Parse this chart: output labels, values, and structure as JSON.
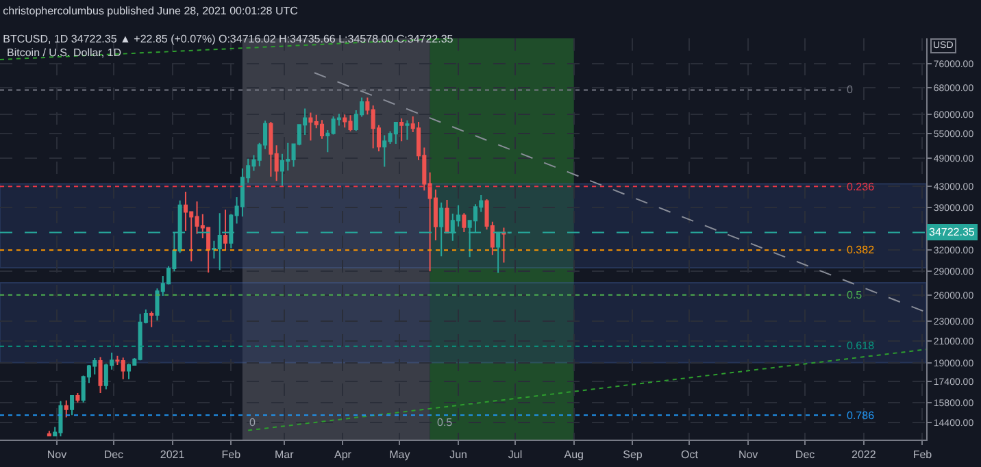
{
  "chart_data": {
    "type": "candlestick",
    "title": "christophercolumbus published June 28, 2021 00:01:28 UTC",
    "subtitle": "BTCUSD, 1D 34722.35 ▲ +22.85 (+0.07%) O:34716.02 H:34735.66 L:34578.00 C:34722.35",
    "ylabel": "USD",
    "annotations": [
      "Bitcoin / U.S. Dollar, 1D"
    ],
    "colors": [
      "#ef5350",
      "#26a69a",
      "#26a69a",
      "#ef5350",
      "#26a69a",
      "#ef5350",
      "#26a69a",
      "#26a69a",
      "#26a69a",
      "#ef5350",
      "#26a69a",
      "#26a69a",
      "#ef5350",
      "#ef5350",
      "#26a69a",
      "#26a69a",
      "#26a69a",
      "#26a69a",
      "#ef5350",
      "#26a69a",
      "#26a69a",
      "#26a69a",
      "#26a69a",
      "#26a69a",
      "#ef5350",
      "#ef5350",
      "#ef5350",
      "#ef5350",
      "#ef5350",
      "#26a69a",
      "#26a69a",
      "#ef5350",
      "#26a69a",
      "#26a69a",
      "#26a69a",
      "#26a69a",
      "#26a69a",
      "#26a69a",
      "#26a69a",
      "#ef5350",
      "#ef5350",
      "#26a69a",
      "#26a69a",
      "#26a69a",
      "#26a69a",
      "#26a69a",
      "#ef5350",
      "#ef5350",
      "#ef5350",
      "#26a69a",
      "#26a69a",
      "#26a69a",
      "#ef5350",
      "#ef5350",
      "#26a69a",
      "#26a69a",
      "#ef5350",
      "#ef5350",
      "#ef5350",
      "#26a69a",
      "#26a69a",
      "#26a69a",
      "#ef5350",
      "#26a69a",
      "#ef5350",
      "#ef5350",
      "#ef5350",
      "#ef5350",
      "#ef5350",
      "#26a69a",
      "#ef5350",
      "#26a69a",
      "#26a69a",
      "#ef5350",
      "#26a69a",
      "#26a69a",
      "#26a69a",
      "#ef5350",
      "#ef5350",
      "#26a69a",
      "#ef5350",
      "#26a69a"
    ],
    "x": [
      "2020-10-28",
      "2020-10-31",
      "2020-11-03",
      "2020-11-06",
      "2020-11-09",
      "2020-11-12",
      "2020-11-15",
      "2020-11-18",
      "2020-11-21",
      "2020-11-24",
      "2020-11-27",
      "2020-11-30",
      "2020-12-03",
      "2020-12-06",
      "2020-12-09",
      "2020-12-12",
      "2020-12-15",
      "2020-12-18",
      "2020-12-21",
      "2020-12-24",
      "2020-12-27",
      "2020-12-30",
      "2021-01-02",
      "2021-01-05",
      "2021-01-08",
      "2021-01-11",
      "2021-01-14",
      "2021-01-17",
      "2021-01-20",
      "2021-01-23",
      "2021-01-26",
      "2021-01-29",
      "2021-02-01",
      "2021-02-04",
      "2021-02-07",
      "2021-02-10",
      "2021-02-13",
      "2021-02-16",
      "2021-02-19",
      "2021-02-22",
      "2021-02-25",
      "2021-02-28",
      "2021-03-03",
      "2021-03-06",
      "2021-03-09",
      "2021-03-12",
      "2021-03-15",
      "2021-03-18",
      "2021-03-21",
      "2021-03-24",
      "2021-03-27",
      "2021-03-30",
      "2021-04-02",
      "2021-04-05",
      "2021-04-08",
      "2021-04-11",
      "2021-04-14",
      "2021-04-17",
      "2021-04-20",
      "2021-04-23",
      "2021-04-26",
      "2021-04-29",
      "2021-05-02",
      "2021-05-05",
      "2021-05-08",
      "2021-05-11",
      "2021-05-14",
      "2021-05-17",
      "2021-05-20",
      "2021-05-23",
      "2021-05-26",
      "2021-05-29",
      "2021-06-01",
      "2021-06-04",
      "2021-06-07",
      "2021-06-10",
      "2021-06-13",
      "2021-06-16",
      "2021-06-19",
      "2021-06-22",
      "2021-06-25",
      "2021-06-28"
    ],
    "ohlc": [
      [
        13650,
        13850,
        13500,
        13550
      ],
      [
        13550,
        14100,
        13500,
        13750
      ],
      [
        13750,
        15900,
        13500,
        15550
      ],
      [
        15550,
        15950,
        14750,
        15300
      ],
      [
        15300,
        16350,
        14900,
        16300
      ],
      [
        16300,
        16500,
        15800,
        15980
      ],
      [
        15980,
        17900,
        15800,
        17800
      ],
      [
        17800,
        18800,
        17300,
        18700
      ],
      [
        18700,
        19400,
        18000,
        19150
      ],
      [
        19150,
        19500,
        16500,
        17100
      ],
      [
        17100,
        18900,
        16800,
        18780
      ],
      [
        18780,
        19900,
        18400,
        19200
      ],
      [
        19200,
        19600,
        18800,
        19150
      ],
      [
        19150,
        19450,
        17600,
        18300
      ],
      [
        18300,
        18900,
        17600,
        18800
      ],
      [
        18800,
        19400,
        18800,
        19300
      ],
      [
        19300,
        23800,
        19200,
        22900
      ],
      [
        22900,
        24300,
        22800,
        23850
      ],
      [
        23850,
        24100,
        22400,
        23700
      ],
      [
        23700,
        26800,
        23100,
        26450
      ],
      [
        26450,
        28400,
        25900,
        27400
      ],
      [
        27400,
        29700,
        27300,
        29400
      ],
      [
        29400,
        34800,
        29000,
        31900
      ],
      [
        31900,
        40300,
        31600,
        39400
      ],
      [
        39400,
        41950,
        35000,
        38200
      ],
      [
        38200,
        38300,
        30400,
        37350
      ],
      [
        37350,
        40100,
        34500,
        35800
      ],
      [
        35800,
        37800,
        33800,
        35500
      ],
      [
        35500,
        35500,
        28850,
        32100
      ],
      [
        32100,
        33400,
        30800,
        32250
      ],
      [
        32250,
        38000,
        29200,
        34250
      ],
      [
        34250,
        38600,
        32000,
        33100
      ],
      [
        33100,
        37800,
        32300,
        37600
      ],
      [
        37600,
        40900,
        36200,
        39200
      ],
      [
        39200,
        46750,
        37400,
        44800
      ],
      [
        44800,
        48900,
        43750,
        47300
      ],
      [
        47300,
        49700,
        46200,
        48600
      ],
      [
        48600,
        52600,
        47200,
        52150
      ],
      [
        52150,
        58300,
        51100,
        57500
      ],
      [
        57500,
        58000,
        45000,
        50000
      ],
      [
        50000,
        52000,
        44100,
        46200
      ],
      [
        46200,
        50000,
        43000,
        48400
      ],
      [
        48400,
        52600,
        46300,
        48700
      ],
      [
        48700,
        52400,
        47100,
        52300
      ],
      [
        52300,
        57400,
        52000,
        57200
      ],
      [
        57200,
        61700,
        54600,
        59000
      ],
      [
        59000,
        60500,
        53200,
        58000
      ],
      [
        58000,
        59900,
        56300,
        57300
      ],
      [
        57300,
        58500,
        53600,
        54400
      ],
      [
        54400,
        55800,
        50400,
        55000
      ],
      [
        55000,
        59500,
        54700,
        58700
      ],
      [
        58700,
        60200,
        57000,
        59000
      ],
      [
        59000,
        60000,
        56500,
        58100
      ],
      [
        58100,
        59800,
        55500,
        56000
      ],
      [
        56000,
        61200,
        55600,
        60000
      ],
      [
        60000,
        64900,
        59400,
        63600
      ],
      [
        63600,
        64900,
        60000,
        61300
      ],
      [
        61300,
        62600,
        51300,
        56300
      ],
      [
        56300,
        57100,
        50600,
        51700
      ],
      [
        51700,
        54500,
        47100,
        53000
      ],
      [
        53000,
        55500,
        52400,
        54900
      ],
      [
        54900,
        57900,
        52400,
        57800
      ],
      [
        57800,
        58900,
        53000,
        57100
      ],
      [
        57100,
        58400,
        53400,
        57400
      ],
      [
        57400,
        59500,
        55300,
        56300
      ],
      [
        56300,
        58000,
        48600,
        49600
      ],
      [
        49600,
        51500,
        42200,
        43500
      ],
      [
        43500,
        45900,
        29000,
        40700
      ],
      [
        40700,
        42400,
        33500,
        35700
      ],
      [
        35700,
        39900,
        31100,
        38800
      ],
      [
        38800,
        40400,
        34600,
        34700
      ],
      [
        34700,
        37900,
        33400,
        36700
      ],
      [
        36700,
        39400,
        35700,
        37600
      ],
      [
        37600,
        38000,
        34800,
        35600
      ],
      [
        35600,
        36800,
        31000,
        36700
      ],
      [
        36700,
        39600,
        34800,
        39100
      ],
      [
        39100,
        41300,
        38200,
        40200
      ],
      [
        40200,
        40500,
        35200,
        35800
      ],
      [
        35800,
        36500,
        31300,
        32500
      ],
      [
        32500,
        34800,
        28800,
        34700
      ],
      [
        34700,
        35500,
        30200,
        34500
      ],
      [
        34716.02,
        34735.66,
        34578.0,
        34722.35
      ]
    ],
    "series": [
      {
        "type": "line",
        "color": "#2e9e2e",
        "line_style": "dotted",
        "x": [
          "2020-10-02",
          "2021-05-27"
        ],
        "values": [
          77400,
          85400
        ]
      },
      {
        "type": "line",
        "color": "#2e9e2e",
        "line_style": "dotted",
        "x": [
          "2021-02-10",
          "2022-02-03"
        ],
        "values": [
          13880,
          20200
        ]
      },
      {
        "type": "line",
        "color": "#8a8e99",
        "line_style": "dashed",
        "x": [
          "2021-03-17",
          "2022-02-03"
        ],
        "values": [
          72800,
          24000
        ]
      },
      {
        "type": "line",
        "name": "0",
        "color": "#787b86",
        "line_style": "dotted",
        "x": [
          "2020-10-02",
          "2021-12-20"
        ],
        "values": [
          67200,
          67200
        ]
      },
      {
        "type": "line",
        "name": "0.236",
        "color": "#f23645",
        "line_style": "dotted",
        "x": [
          "2020-10-02",
          "2021-12-20"
        ],
        "values": [
          43000,
          43000
        ]
      },
      {
        "type": "line",
        "name": "0.382",
        "color": "#ff9800",
        "line_style": "dotted",
        "x": [
          "2020-10-02",
          "2021-12-20"
        ],
        "values": [
          32000,
          32000
        ]
      },
      {
        "type": "line",
        "name": "0.5",
        "color": "#4caf50",
        "line_style": "dotted",
        "x": [
          "2020-10-02",
          "2021-12-20"
        ],
        "values": [
          26000,
          26000
        ]
      },
      {
        "type": "line",
        "name": "0.618",
        "color": "#089981",
        "line_style": "dotted",
        "x": [
          "2020-10-02",
          "2021-12-20"
        ],
        "values": [
          20500,
          20500
        ]
      },
      {
        "type": "line",
        "name": "0.786",
        "color": "#2196f3",
        "line_style": "dotted",
        "x": [
          "2020-10-02",
          "2021-12-20"
        ],
        "values": [
          14900,
          14900
        ]
      }
    ],
    "ref_lines": [
      {
        "axis": "y",
        "value": 34722.35,
        "label": "34722.35",
        "color": "#26a69a",
        "line_style": "dashed"
      }
    ],
    "bands": [
      {
        "axis": "x",
        "from": "2021-02-07",
        "to": "2021-05-17",
        "label": "0",
        "color": "#3a3d47"
      },
      {
        "axis": "x",
        "from": "2021-05-17",
        "to": "2021-08-01",
        "label": "0.5",
        "color": "#1f4d2a"
      },
      {
        "axis": "y",
        "from": 29500,
        "to": 43500,
        "color": "#25355e"
      },
      {
        "axis": "y",
        "from": 19000,
        "to": 27500,
        "color": "#25355e"
      }
    ],
    "xlim": [
      "2020-10-02",
      "2022-02-03"
    ],
    "xticks": [
      {
        "value": "2020-11-01",
        "label": "Nov"
      },
      {
        "value": "2020-12-01",
        "label": "Dec"
      },
      {
        "value": "2021-01-01",
        "label": "2021"
      },
      {
        "value": "2021-02-01",
        "label": "Feb"
      },
      {
        "value": "2021-03-01",
        "label": "Mar"
      },
      {
        "value": "2021-04-01",
        "label": "Apr"
      },
      {
        "value": "2021-05-01",
        "label": "May"
      },
      {
        "value": "2021-06-01",
        "label": "Jun"
      },
      {
        "value": "2021-07-01",
        "label": "Jul"
      },
      {
        "value": "2021-08-01",
        "label": "Aug"
      },
      {
        "value": "2021-09-01",
        "label": "Sep"
      },
      {
        "value": "2021-10-01",
        "label": "Oct"
      },
      {
        "value": "2021-11-01",
        "label": "Nov"
      },
      {
        "value": "2021-12-01",
        "label": "Dec"
      },
      {
        "value": "2022-01-01",
        "label": "2022"
      },
      {
        "value": "2022-02-01",
        "label": "Feb"
      }
    ],
    "ylim": [
      13300,
      85400
    ],
    "yticks": [
      {
        "value": 14400,
        "label": "14400.00"
      },
      {
        "value": 15800,
        "label": "15800.00"
      },
      {
        "value": 17400,
        "label": "17400.00"
      },
      {
        "value": 19000,
        "label": "19000.00"
      },
      {
        "value": 21000,
        "label": "21000.00"
      },
      {
        "value": 23000,
        "label": "23000.00"
      },
      {
        "value": 26000,
        "label": "26000.00"
      },
      {
        "value": 29000,
        "label": "29000.00"
      },
      {
        "value": 32000,
        "label": "32000.00"
      },
      {
        "value": 39000,
        "label": "39000.00"
      },
      {
        "value": 43000,
        "label": "43000.00"
      },
      {
        "value": 49000,
        "label": "49000.00"
      },
      {
        "value": 55000,
        "label": "55000.00"
      },
      {
        "value": 60000,
        "label": "60000.00"
      },
      {
        "value": 68000,
        "label": "68000.00"
      },
      {
        "value": 76000,
        "label": "76000.00"
      }
    ],
    "log": true,
    "grid": true,
    "legend": false
  }
}
